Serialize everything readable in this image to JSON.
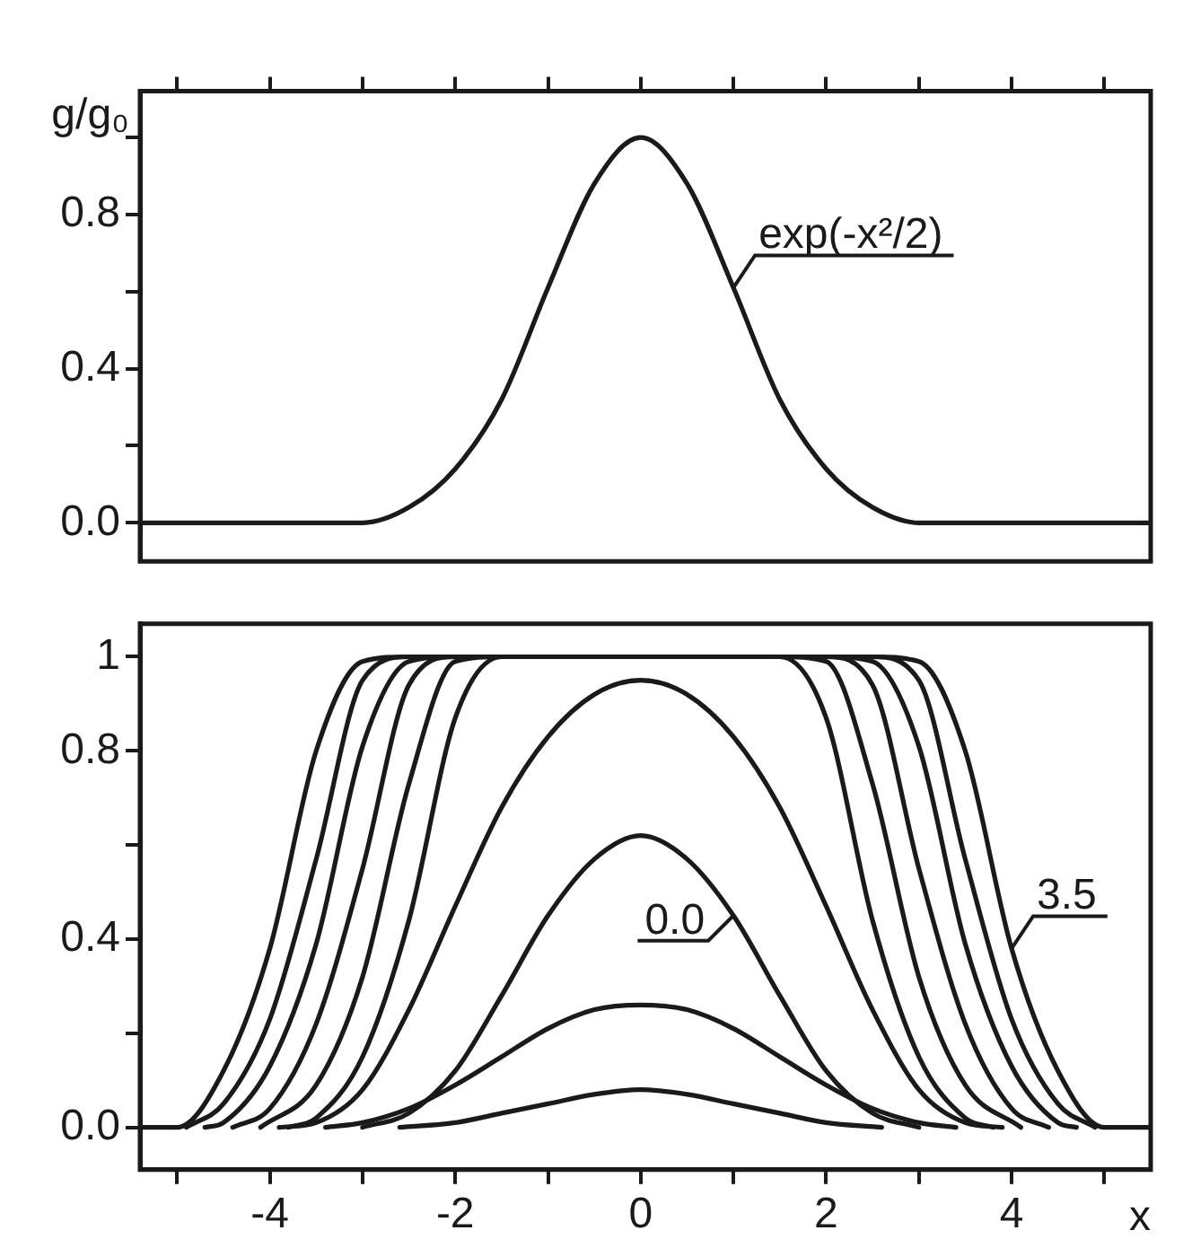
{
  "chart_data": [
    {
      "type": "line",
      "ylabel": "g/g₀",
      "x": [
        -5.4,
        -5,
        -4.5,
        -4,
        -3.5,
        -3,
        -2.5,
        -2,
        -1.5,
        -1,
        -0.5,
        0,
        0.5,
        1,
        1.5,
        2,
        2.5,
        3,
        3.5,
        4,
        4.5,
        5,
        5.5
      ],
      "series": [
        {
          "name": "exp(-x²/2)",
          "color": "#1a1a1a",
          "values": [
            0,
            0,
            0,
            0,
            0,
            0,
            0.04,
            0.14,
            0.32,
            0.61,
            0.88,
            1,
            0.88,
            0.61,
            0.32,
            0.14,
            0.04,
            0,
            0,
            0,
            0,
            0,
            0
          ]
        }
      ],
      "xlim": [
        -5.4,
        5.5
      ],
      "ylim": [
        -0.1,
        1.12
      ],
      "xticks": [
        {
          "value": -5,
          "label": null
        },
        {
          "value": -4,
          "label": null
        },
        {
          "value": -3,
          "label": null
        },
        {
          "value": -2,
          "label": null
        },
        {
          "value": -1,
          "label": null
        },
        {
          "value": 0,
          "label": null
        },
        {
          "value": 1,
          "label": null
        },
        {
          "value": 2,
          "label": null
        },
        {
          "value": 3,
          "label": null
        },
        {
          "value": 4,
          "label": null
        },
        {
          "value": 5,
          "label": null
        }
      ],
      "yticks": [
        {
          "value": 0,
          "label": "0.0"
        },
        {
          "value": 0.2,
          "label": null
        },
        0.4,
        {
          "value": 0.6,
          "label": null
        },
        0.8,
        {
          "value": 1,
          "label": null
        }
      ],
      "tick_labels": "y",
      "grid": false,
      "legend": false
    },
    {
      "type": "line",
      "xlabel": "x",
      "x": [
        -5.4,
        -5,
        -4.5,
        -4,
        -3.5,
        -3,
        -2.5,
        -2,
        -1.5,
        -1,
        -0.5,
        0,
        0.5,
        1,
        1.5,
        2,
        2.5,
        3,
        3.5,
        4,
        4.5,
        5,
        5.5
      ],
      "series": [
        {
          "name": "3.5",
          "color": "#1a1a1a",
          "values": [
            0,
            0,
            0.12,
            0.38,
            0.8,
            0.99,
            1,
            1,
            1,
            1,
            1,
            1,
            1,
            1,
            1,
            1,
            1,
            0.99,
            0.8,
            0.38,
            0.12,
            0,
            0
          ]
        },
        {
          "color": "#1a1a1a",
          "x": [
            -4.9,
            -4.5,
            -4,
            -3.5,
            -3,
            -2.5,
            -2,
            -1.5,
            -1,
            -0.5,
            0,
            0.5,
            1,
            1.5,
            2,
            2.5,
            3,
            3.5,
            4,
            4.5,
            4.9
          ],
          "values": [
            0,
            0.05,
            0.23,
            0.57,
            0.95,
            1,
            1,
            1,
            1,
            1,
            1,
            1,
            1,
            1,
            1,
            1,
            0.95,
            0.57,
            0.23,
            0.05,
            0
          ]
        },
        {
          "color": "#1a1a1a",
          "x": [
            -4.7,
            -4.5,
            -4,
            -3.5,
            -3,
            -2.5,
            -2,
            -1.5,
            -1,
            -0.5,
            0,
            0.5,
            1,
            1.5,
            2,
            2.5,
            3,
            3.5,
            4,
            4.5,
            4.7
          ],
          "values": [
            0,
            0.01,
            0.13,
            0.39,
            0.81,
            0.99,
            1,
            1,
            1,
            1,
            1,
            1,
            1,
            1,
            1,
            0.99,
            0.81,
            0.39,
            0.13,
            0.01,
            0
          ]
        },
        {
          "color": "#1a1a1a",
          "x": [
            -4.4,
            -4,
            -3.5,
            -3,
            -2.5,
            -2,
            -1.5,
            -1,
            -0.5,
            0,
            0.5,
            1,
            1.5,
            2,
            2.5,
            3,
            3.5,
            4,
            4.4
          ],
          "values": [
            0,
            0.04,
            0.22,
            0.55,
            0.94,
            1,
            1,
            1,
            1,
            1,
            1,
            1,
            1,
            1,
            0.94,
            0.55,
            0.22,
            0.04,
            0
          ]
        },
        {
          "color": "#1a1a1a",
          "x": [
            -4.1,
            -3.5,
            -3,
            -2.5,
            -2,
            -1.5,
            -1,
            -0.5,
            0,
            0.5,
            1,
            1.5,
            2,
            2.5,
            3,
            3.5,
            4.1
          ],
          "values": [
            0,
            0.09,
            0.32,
            0.73,
            0.99,
            1,
            1,
            1,
            1,
            1,
            1,
            1,
            0.99,
            0.73,
            0.32,
            0.09,
            0
          ]
        },
        {
          "color": "#1a1a1a",
          "x": [
            -3.8,
            -3.5,
            -3,
            -2.5,
            -2,
            -1.5,
            -1,
            -0.5,
            0,
            0.5,
            1,
            1.5,
            2,
            2.5,
            3,
            3.5,
            3.8
          ],
          "values": [
            0,
            0.02,
            0.15,
            0.44,
            0.87,
            1,
            1,
            1,
            1,
            1,
            1,
            1,
            0.87,
            0.44,
            0.15,
            0.02,
            0
          ]
        },
        {
          "color": "#1a1a1a",
          "x": [
            -3.9,
            -3.5,
            -3,
            -2.5,
            -2,
            -1.5,
            -1,
            -0.5,
            0,
            0.5,
            1,
            1.5,
            2,
            2.5,
            3,
            3.5,
            3.9
          ],
          "values": [
            0,
            0.01,
            0.08,
            0.25,
            0.47,
            0.68,
            0.83,
            0.92,
            0.95,
            0.92,
            0.83,
            0.68,
            0.47,
            0.25,
            0.08,
            0.01,
            0
          ]
        },
        {
          "name": "0.0",
          "color": "#1a1a1a",
          "x": [
            -3,
            -2.5,
            -2,
            -1.5,
            -1,
            -0.5,
            0,
            0.5,
            1,
            1.5,
            2,
            2.5,
            3
          ],
          "values": [
            0,
            0.03,
            0.12,
            0.28,
            0.45,
            0.57,
            0.62,
            0.57,
            0.45,
            0.28,
            0.12,
            0.03,
            0
          ]
        },
        {
          "color": "#1a1a1a",
          "x": [
            -3.4,
            -3,
            -2.5,
            -2,
            -1.5,
            -1,
            -0.5,
            0,
            0.5,
            1,
            1.5,
            2,
            2.5,
            3,
            3.4
          ],
          "values": [
            0,
            0.01,
            0.04,
            0.09,
            0.15,
            0.21,
            0.25,
            0.26,
            0.25,
            0.21,
            0.15,
            0.09,
            0.04,
            0.01,
            0
          ]
        },
        {
          "color": "#1a1a1a",
          "x": [
            -2.6,
            -2,
            -1.5,
            -1,
            -0.5,
            0,
            0.5,
            1,
            1.5,
            2,
            2.6
          ],
          "values": [
            0,
            0.01,
            0.03,
            0.05,
            0.07,
            0.08,
            0.07,
            0.05,
            0.03,
            0.01,
            0
          ]
        }
      ],
      "xlim": [
        -5.4,
        5.5
      ],
      "ylim": [
        -0.09,
        1.07
      ],
      "xticks": [
        {
          "value": -5,
          "label": null
        },
        -4,
        {
          "value": -3,
          "label": null
        },
        -2,
        {
          "value": -1,
          "label": null
        },
        0,
        {
          "value": 1,
          "label": null
        },
        2,
        {
          "value": 3,
          "label": null
        },
        4,
        {
          "value": 5,
          "label": null
        }
      ],
      "yticks": [
        {
          "value": 0,
          "label": "0.0"
        },
        {
          "value": 0.2,
          "label": null
        },
        0.4,
        {
          "value": 0.6,
          "label": null
        },
        0.8,
        1
      ],
      "grid": false,
      "legend": false
    }
  ]
}
